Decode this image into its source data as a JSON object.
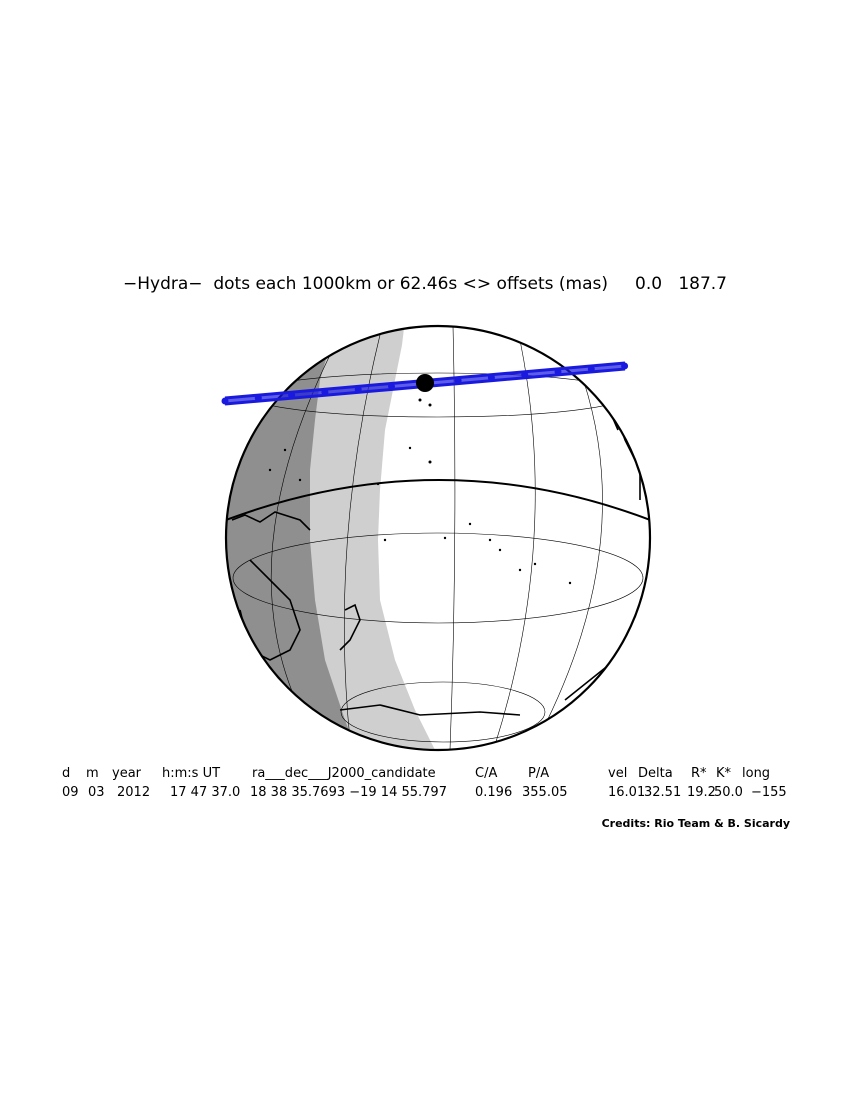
{
  "header": {
    "object": "−Hydra−",
    "description": "dots each 1000km or 62.46s <> offsets (mas)",
    "offset_ra": "0.0",
    "offset_dec": "187.7"
  },
  "map": {
    "track_color": "#1a1adf",
    "night_color": "#8f8f8f",
    "twilight_color": "#cfcfcf",
    "day_color": "#ffffff"
  },
  "table": {
    "headers": [
      "d",
      "m",
      "year",
      "h:m:s UT",
      "ra___dec___J2000_candidate",
      "C/A",
      "P/A",
      "vel",
      "Delta",
      "R*",
      "K*",
      "long"
    ],
    "values": [
      "09",
      "03",
      "2012",
      "17 47 37.0",
      "18 38 35.7693 −19 14 55.797",
      "0.196",
      "355.05",
      "16.01",
      "32.51",
      "19.2",
      "50.0",
      "−155"
    ]
  },
  "credits": "Credits: Rio Team & B. Sicardy"
}
